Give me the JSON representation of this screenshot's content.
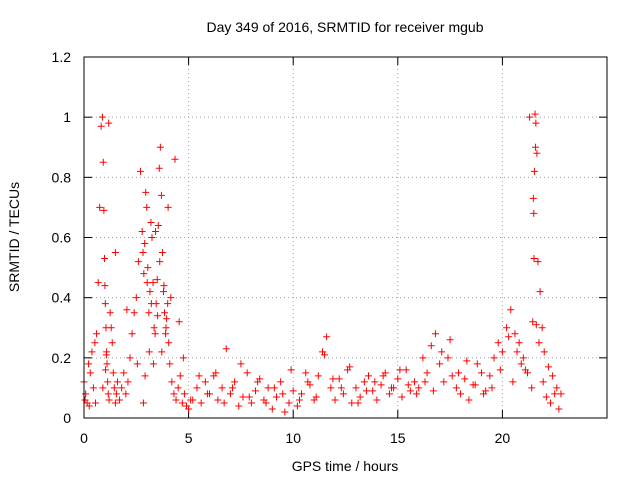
{
  "chart_data": {
    "type": "scatter",
    "title": "Day 349 of 2016, SRMTID for receiver mgub",
    "xlabel": "GPS time / hours",
    "ylabel": "SRMTID / TECUs",
    "xlim": [
      0,
      25
    ],
    "ylim": [
      0,
      1.2
    ],
    "xticks": [
      0,
      5,
      10,
      15,
      20
    ],
    "yticks": [
      0,
      0.2,
      0.4,
      0.6,
      0.8,
      1,
      1.2
    ],
    "xtick_labels": [
      "0",
      "5",
      "10",
      "15",
      "20"
    ],
    "ytick_labels": [
      "0",
      "0.2",
      "0.4",
      "0.6",
      "0.8",
      "1",
      "1.2"
    ],
    "grid": true,
    "marker": "+",
    "series": [
      {
        "name": "SRMTID",
        "color": "#ff0000",
        "x": [
          0.0,
          0.08,
          0.15,
          0.22,
          0.3,
          0.38,
          0.45,
          0.52,
          0.6,
          0.68,
          0.75,
          0.82,
          0.88,
          0.92,
          0.95,
          0.98,
          1.0,
          1.02,
          1.05,
          1.08,
          1.1,
          1.13,
          1.16,
          1.2,
          1.25,
          1.3,
          1.35,
          1.4,
          1.45,
          1.5,
          1.55,
          1.6,
          1.7,
          1.8,
          1.9,
          2.0,
          2.1,
          2.2,
          2.3,
          2.4,
          2.5,
          2.6,
          2.7,
          2.78,
          2.82,
          2.86,
          2.9,
          2.95,
          3.0,
          3.05,
          3.1,
          3.15,
          3.2,
          3.25,
          3.3,
          3.35,
          3.4,
          3.45,
          3.5,
          3.55,
          3.6,
          3.65,
          3.7,
          3.75,
          3.8,
          3.85,
          3.9,
          3.95,
          4.0,
          4.05,
          4.1,
          4.2,
          4.3,
          4.4,
          4.5,
          4.6,
          4.7,
          4.8,
          4.9,
          5.0,
          5.2,
          5.4,
          5.6,
          5.8,
          6.0,
          6.2,
          6.4,
          6.6,
          6.8,
          7.0,
          7.2,
          7.4,
          7.6,
          7.8,
          8.0,
          8.2,
          8.4,
          8.6,
          8.8,
          9.0,
          9.2,
          9.4,
          9.6,
          9.8,
          10.0,
          10.2,
          10.4,
          10.6,
          10.8,
          11.0,
          11.2,
          11.4,
          11.6,
          11.8,
          12.0,
          12.2,
          12.4,
          12.6,
          12.8,
          13.0,
          13.2,
          13.4,
          13.6,
          13.8,
          14.0,
          14.2,
          14.4,
          14.6,
          14.8,
          15.0,
          15.2,
          15.4,
          15.6,
          15.8,
          16.0,
          16.2,
          16.4,
          16.6,
          16.8,
          17.0,
          17.2,
          17.4,
          17.6,
          17.8,
          18.0,
          18.2,
          18.4,
          18.6,
          18.8,
          19.0,
          19.2,
          19.4,
          19.6,
          19.8,
          20.0,
          20.2,
          20.4,
          20.6,
          20.8,
          21.0,
          21.2,
          21.4,
          21.45,
          21.5,
          21.53,
          21.56,
          21.6,
          21.65,
          21.7,
          21.8,
          21.9,
          22.0,
          22.2,
          22.4,
          22.6,
          22.8,
          0.05,
          0.25,
          0.55,
          0.9,
          1.03,
          1.07,
          1.18,
          1.5,
          2.05,
          2.55,
          2.84,
          2.92,
          3.02,
          3.12,
          3.22,
          3.32,
          3.42,
          3.52,
          3.62,
          3.72,
          3.82,
          3.92,
          4.02,
          4.15,
          4.35,
          4.55,
          4.75,
          5.1,
          5.5,
          5.9,
          6.3,
          6.7,
          7.1,
          7.5,
          7.9,
          8.3,
          8.7,
          9.1,
          9.5,
          9.9,
          10.3,
          10.7,
          11.1,
          11.5,
          11.9,
          12.3,
          12.7,
          13.1,
          13.5,
          13.9,
          14.3,
          14.7,
          15.1,
          15.5,
          15.9,
          16.3,
          16.7,
          17.1,
          17.5,
          17.9,
          18.3,
          18.7,
          19.1,
          19.5,
          19.9,
          20.3,
          20.5,
          20.7,
          20.9,
          21.1,
          21.3,
          21.48,
          21.51,
          21.58,
          21.62,
          21.75,
          21.95,
          22.1,
          22.3,
          22.5,
          22.7
        ],
        "y": [
          0.12,
          0.08,
          0.05,
          0.18,
          0.15,
          0.22,
          0.1,
          0.25,
          0.28,
          0.45,
          0.7,
          0.97,
          1.0,
          0.85,
          0.69,
          0.53,
          0.44,
          0.38,
          0.3,
          0.22,
          0.18,
          0.12,
          0.08,
          0.06,
          0.35,
          0.3,
          0.25,
          0.15,
          0.1,
          0.05,
          0.08,
          0.12,
          0.06,
          0.1,
          0.15,
          0.08,
          0.12,
          0.2,
          0.28,
          0.35,
          0.4,
          0.52,
          0.82,
          0.62,
          0.55,
          0.48,
          0.58,
          0.75,
          0.7,
          0.5,
          0.35,
          0.42,
          0.65,
          0.6,
          0.45,
          0.3,
          0.28,
          0.38,
          0.46,
          0.64,
          0.83,
          0.9,
          0.74,
          0.55,
          0.42,
          0.35,
          0.28,
          0.33,
          0.38,
          0.25,
          0.18,
          0.12,
          0.08,
          0.06,
          0.1,
          0.14,
          0.05,
          0.08,
          0.04,
          0.03,
          0.06,
          0.1,
          0.05,
          0.12,
          0.08,
          0.14,
          0.06,
          0.1,
          0.23,
          0.08,
          0.12,
          0.04,
          0.07,
          0.15,
          0.05,
          0.09,
          0.13,
          0.06,
          0.1,
          0.03,
          0.07,
          0.12,
          0.02,
          0.05,
          0.09,
          0.04,
          0.08,
          0.15,
          0.11,
          0.06,
          0.14,
          0.22,
          0.27,
          0.1,
          0.06,
          0.13,
          0.08,
          0.16,
          0.05,
          0.1,
          0.07,
          0.12,
          0.14,
          0.09,
          0.06,
          0.11,
          0.15,
          0.08,
          0.1,
          0.13,
          0.07,
          0.16,
          0.09,
          0.12,
          0.1,
          0.2,
          0.15,
          0.24,
          0.28,
          0.18,
          0.12,
          0.2,
          0.14,
          0.1,
          0.08,
          0.13,
          0.06,
          0.11,
          0.18,
          0.15,
          0.09,
          0.14,
          0.2,
          0.25,
          0.22,
          0.3,
          0.36,
          0.28,
          0.25,
          0.2,
          0.15,
          0.1,
          0.32,
          0.68,
          0.82,
          1.01,
          0.98,
          0.88,
          0.52,
          0.42,
          0.3,
          0.22,
          0.17,
          0.14,
          0.1,
          0.08,
          0.06,
          0.04,
          0.05,
          0.1,
          0.16,
          0.21,
          0.98,
          0.55,
          0.36,
          0.18,
          0.05,
          0.14,
          0.45,
          0.22,
          0.38,
          0.18,
          0.62,
          0.34,
          0.52,
          0.22,
          0.44,
          0.3,
          0.7,
          0.4,
          0.86,
          0.32,
          0.2,
          0.06,
          0.14,
          0.08,
          0.15,
          0.05,
          0.1,
          0.18,
          0.07,
          0.12,
          0.05,
          0.1,
          0.08,
          0.16,
          0.06,
          0.12,
          0.07,
          0.21,
          0.13,
          0.1,
          0.17,
          0.05,
          0.09,
          0.12,
          0.14,
          0.1,
          0.16,
          0.11,
          0.08,
          0.12,
          0.09,
          0.22,
          0.26,
          0.15,
          0.19,
          0.11,
          0.08,
          0.1,
          0.16,
          0.27,
          0.12,
          0.22,
          0.18,
          0.16,
          1.0,
          0.73,
          0.53,
          0.9,
          0.31,
          0.25,
          0.12,
          0.07,
          0.05,
          0.08,
          0.03
        ]
      }
    ]
  }
}
